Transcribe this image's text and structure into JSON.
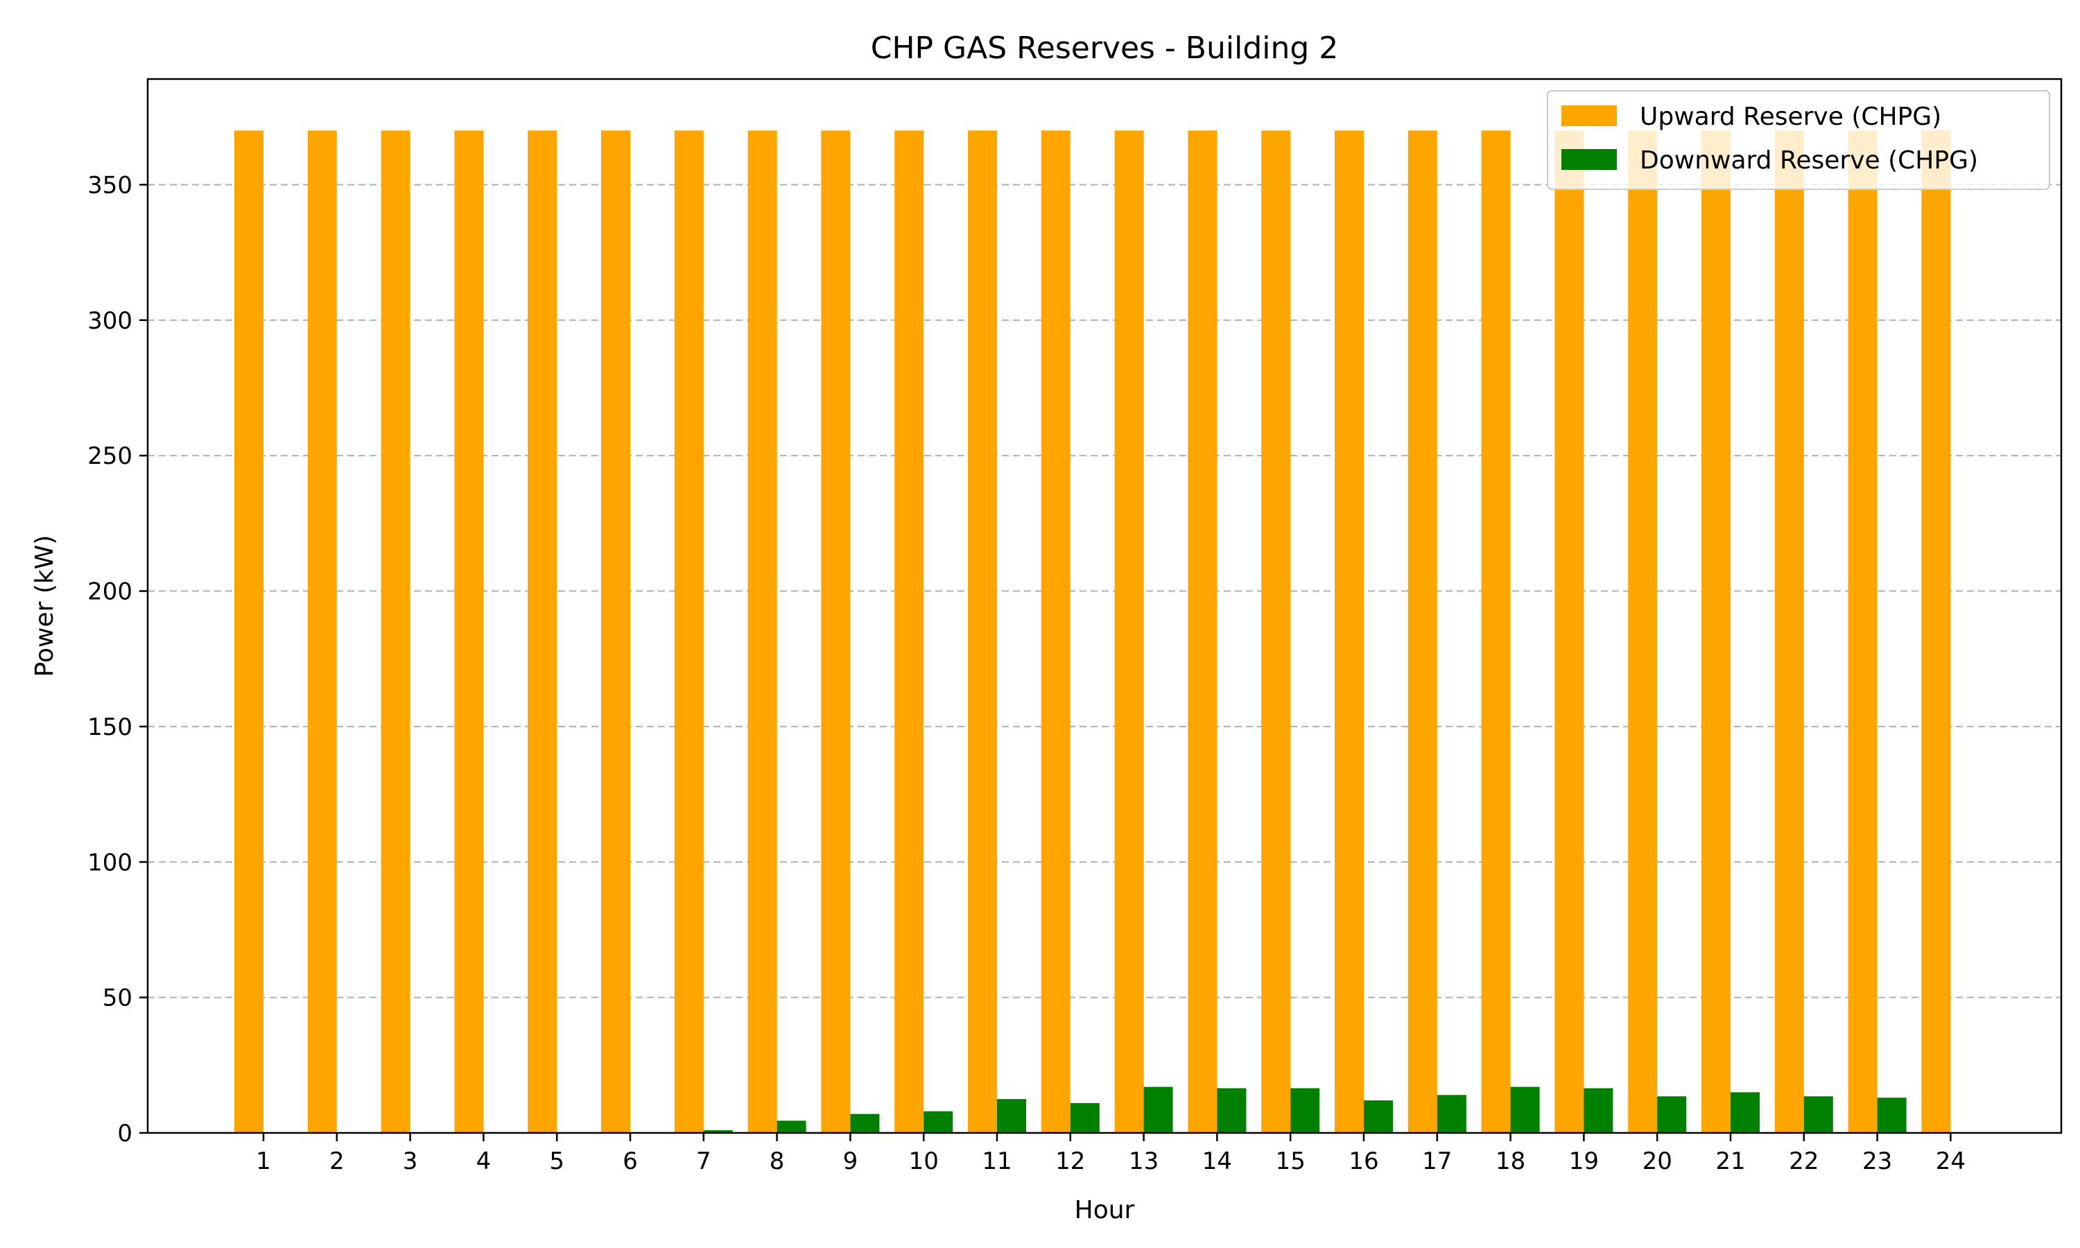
{
  "chart_data": {
    "type": "bar",
    "title": "CHP GAS Reserves - Building 2",
    "xlabel": "Hour",
    "ylabel": "Power (kW)",
    "categories": [
      "1",
      "2",
      "3",
      "4",
      "5",
      "6",
      "7",
      "8",
      "9",
      "10",
      "11",
      "12",
      "13",
      "14",
      "15",
      "16",
      "17",
      "18",
      "19",
      "20",
      "21",
      "22",
      "23",
      "24"
    ],
    "series": [
      {
        "name": "Upward Reserve (CHPG)",
        "color": "#FFA500",
        "values": [
          370,
          370,
          370,
          370,
          370,
          370,
          370,
          370,
          370,
          370,
          370,
          370,
          370,
          370,
          370,
          370,
          370,
          370,
          370,
          370,
          370,
          370,
          370,
          370
        ]
      },
      {
        "name": "Downward Reserve (CHPG)",
        "color": "#008000",
        "values": [
          0,
          0,
          0,
          0,
          0,
          0,
          1,
          4.5,
          7,
          8,
          12.5,
          11,
          17,
          16.5,
          16.5,
          12,
          14,
          17,
          16.5,
          13.5,
          15,
          13.5,
          13,
          0
        ]
      }
    ],
    "ylim": [
      0,
      389
    ],
    "yticks": [
      0,
      50,
      100,
      150,
      200,
      250,
      300,
      350
    ],
    "grid": "y-dashed",
    "legend": "top-right"
  }
}
